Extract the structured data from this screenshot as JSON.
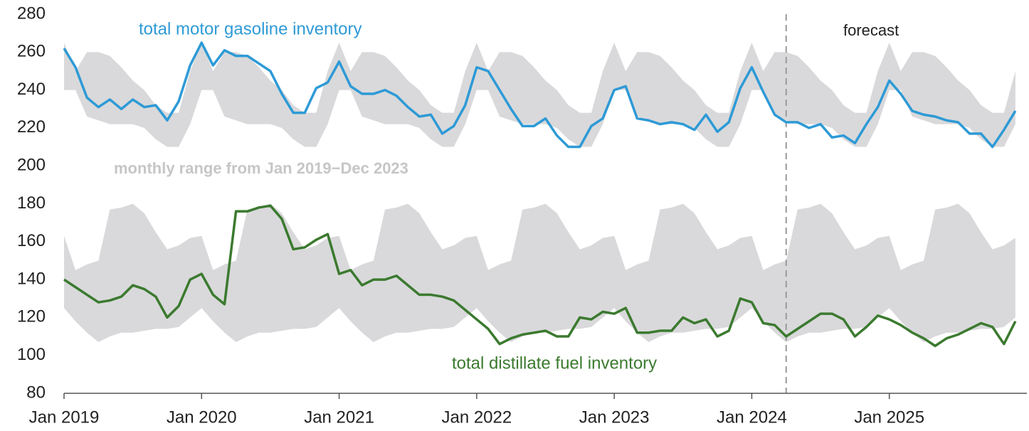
{
  "chart_data": {
    "type": "line",
    "range_label": "monthly range from Jan 2019−Dec 2023",
    "forecast_label": "forecast",
    "forecast_start": "2024-04",
    "xlim": [
      "2019-01",
      "2026-01"
    ],
    "ylim": [
      80,
      280
    ],
    "yticks": [
      80,
      100,
      120,
      140,
      160,
      180,
      200,
      220,
      240,
      260,
      280
    ],
    "xticks": [
      {
        "value": "2019-01",
        "label": "Jan 2019"
      },
      {
        "value": "2020-01",
        "label": "Jan 2020"
      },
      {
        "value": "2021-01",
        "label": "Jan 2021"
      },
      {
        "value": "2022-01",
        "label": "Jan 2022"
      },
      {
        "value": "2023-01",
        "label": "Jan 2023"
      },
      {
        "value": "2024-01",
        "label": "Jan 2024"
      },
      {
        "value": "2025-01",
        "label": "Jan 2025"
      }
    ],
    "x": [
      "2019-01",
      "2019-02",
      "2019-03",
      "2019-04",
      "2019-05",
      "2019-06",
      "2019-07",
      "2019-08",
      "2019-09",
      "2019-10",
      "2019-11",
      "2019-12",
      "2020-01",
      "2020-02",
      "2020-03",
      "2020-04",
      "2020-05",
      "2020-06",
      "2020-07",
      "2020-08",
      "2020-09",
      "2020-10",
      "2020-11",
      "2020-12",
      "2021-01",
      "2021-02",
      "2021-03",
      "2021-04",
      "2021-05",
      "2021-06",
      "2021-07",
      "2021-08",
      "2021-09",
      "2021-10",
      "2021-11",
      "2021-12",
      "2022-01",
      "2022-02",
      "2022-03",
      "2022-04",
      "2022-05",
      "2022-06",
      "2022-07",
      "2022-08",
      "2022-09",
      "2022-10",
      "2022-11",
      "2022-12",
      "2023-01",
      "2023-02",
      "2023-03",
      "2023-04",
      "2023-05",
      "2023-06",
      "2023-07",
      "2023-08",
      "2023-09",
      "2023-10",
      "2023-11",
      "2023-12",
      "2024-01",
      "2024-02",
      "2024-03",
      "2024-04",
      "2024-05",
      "2024-06",
      "2024-07",
      "2024-08",
      "2024-09",
      "2024-10",
      "2024-11",
      "2024-12",
      "2025-01",
      "2025-02",
      "2025-03",
      "2025-04",
      "2025-05",
      "2025-06",
      "2025-07",
      "2025-08",
      "2025-09",
      "2025-10",
      "2025-11",
      "2025-12"
    ],
    "ranges": [
      {
        "color": "#d9d9db",
        "upper": [
          265,
          250,
          260,
          260,
          258,
          252,
          245,
          240,
          232,
          228,
          228,
          250,
          265,
          250,
          260,
          260,
          258,
          252,
          245,
          240,
          232,
          228,
          228,
          250,
          265,
          250,
          260,
          260,
          258,
          252,
          245,
          240,
          232,
          228,
          228,
          250,
          265,
          250,
          260,
          260,
          258,
          252,
          245,
          240,
          232,
          228,
          228,
          250,
          265,
          250,
          260,
          260,
          258,
          252,
          245,
          240,
          232,
          228,
          228,
          250,
          265,
          250,
          260,
          260,
          258,
          252,
          245,
          240,
          232,
          228,
          228,
          250,
          265,
          250,
          260,
          260,
          258,
          252,
          245,
          240,
          232,
          228,
          228,
          250
        ],
        "lower": [
          240,
          240,
          226,
          224,
          222,
          222,
          222,
          220,
          214,
          210,
          210,
          222,
          240,
          240,
          226,
          224,
          222,
          222,
          222,
          220,
          214,
          210,
          210,
          222,
          240,
          240,
          226,
          224,
          222,
          222,
          222,
          220,
          214,
          210,
          210,
          222,
          240,
          240,
          226,
          224,
          222,
          222,
          222,
          220,
          214,
          210,
          210,
          222,
          240,
          240,
          226,
          224,
          222,
          222,
          222,
          220,
          214,
          210,
          210,
          222,
          240,
          240,
          226,
          224,
          222,
          222,
          222,
          220,
          214,
          210,
          210,
          222,
          240,
          240,
          226,
          224,
          222,
          222,
          222,
          220,
          214,
          210,
          210,
          222
        ]
      },
      {
        "color": "#d9d9db",
        "upper": [
          163,
          145,
          148,
          150,
          177,
          178,
          180,
          175,
          165,
          156,
          158,
          162,
          163,
          145,
          148,
          150,
          177,
          178,
          180,
          175,
          165,
          156,
          158,
          162,
          163,
          145,
          148,
          150,
          177,
          178,
          180,
          175,
          165,
          156,
          158,
          162,
          163,
          145,
          148,
          150,
          177,
          178,
          180,
          175,
          165,
          156,
          158,
          162,
          163,
          145,
          148,
          150,
          177,
          178,
          180,
          175,
          165,
          156,
          158,
          162,
          163,
          145,
          148,
          150,
          177,
          178,
          180,
          175,
          165,
          156,
          158,
          162,
          163,
          145,
          148,
          150,
          177,
          178,
          180,
          175,
          165,
          156,
          158,
          162
        ],
        "lower": [
          125,
          118,
          112,
          107,
          110,
          112,
          112,
          113,
          114,
          114,
          115,
          120,
          125,
          118,
          112,
          107,
          110,
          112,
          112,
          113,
          114,
          114,
          115,
          120,
          125,
          118,
          112,
          107,
          110,
          112,
          112,
          113,
          114,
          114,
          115,
          120,
          125,
          118,
          112,
          107,
          110,
          112,
          112,
          113,
          114,
          114,
          115,
          120,
          125,
          118,
          112,
          107,
          110,
          112,
          112,
          113,
          114,
          114,
          115,
          120,
          125,
          118,
          112,
          107,
          110,
          112,
          112,
          113,
          114,
          114,
          115,
          120,
          125,
          118,
          112,
          107,
          110,
          112,
          112,
          113,
          114,
          114,
          115,
          120
        ]
      }
    ],
    "series": [
      {
        "name": "total motor gasoline inventory",
        "color": "#2e9ad6",
        "values": [
          262,
          252,
          236,
          231,
          235,
          230,
          235,
          231,
          232,
          224,
          234,
          253,
          265,
          253,
          261,
          258,
          258,
          254,
          250,
          238,
          228,
          228,
          241,
          244,
          255,
          242,
          238,
          238,
          240,
          237,
          231,
          226,
          227,
          217,
          221,
          232,
          252,
          250,
          240,
          230,
          221,
          221,
          225,
          216,
          210,
          210,
          221,
          225,
          240,
          242,
          225,
          224,
          222,
          223,
          222,
          219,
          227,
          218,
          223,
          241,
          252,
          239,
          227,
          223,
          223,
          220,
          222,
          215,
          216,
          212,
          222,
          231,
          245,
          238,
          229,
          227,
          226,
          224,
          223,
          217,
          217,
          210,
          219,
          229
        ]
      },
      {
        "name": "total distillate fuel inventory",
        "color": "#3b7a2f",
        "values": [
          140,
          136,
          132,
          128,
          129,
          131,
          137,
          135,
          131,
          120,
          126,
          140,
          143,
          132,
          127,
          176,
          176,
          178,
          179,
          172,
          156,
          157,
          161,
          164,
          143,
          145,
          137,
          140,
          140,
          142,
          137,
          132,
          132,
          131,
          129,
          124,
          119,
          114,
          106,
          109,
          111,
          112,
          113,
          110,
          110,
          120,
          119,
          123,
          122,
          125,
          112,
          112,
          113,
          113,
          120,
          117,
          119,
          110,
          113,
          130,
          128,
          117,
          116,
          110,
          114,
          118,
          122,
          122,
          119,
          110,
          115,
          121,
          119,
          116,
          112,
          109,
          105,
          109,
          111,
          114,
          117,
          115,
          106,
          118
        ]
      }
    ]
  }
}
